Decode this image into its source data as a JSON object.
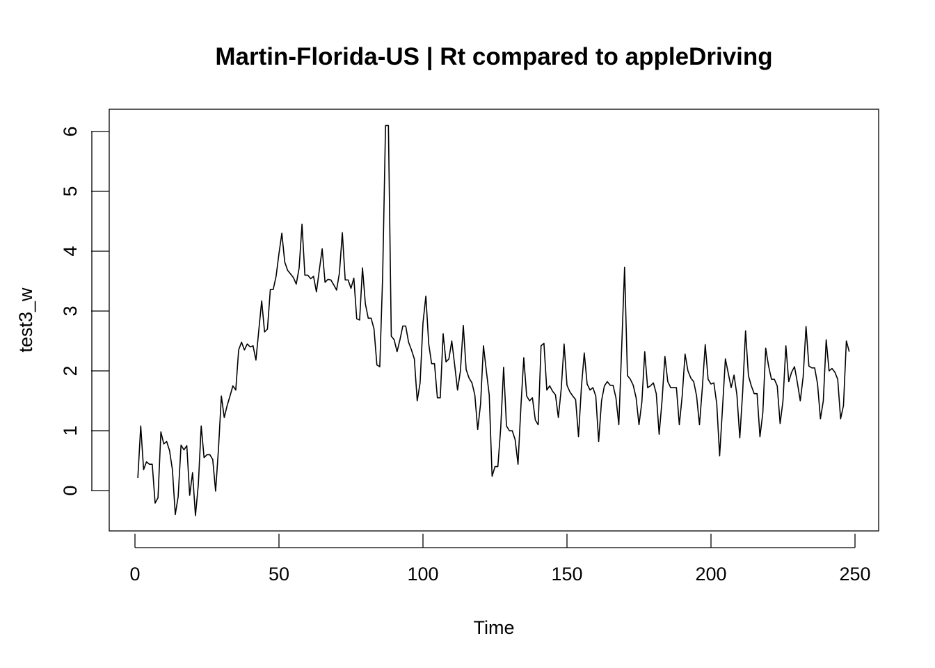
{
  "chart_data": {
    "type": "line",
    "title": "Martin-Florida-US | Rt compared to appleDriving",
    "xlabel": "Time",
    "ylabel": "test3_w",
    "xlim": [
      1,
      248
    ],
    "ylim": [
      -0.42,
      6.1
    ],
    "x_ticks": [
      0,
      50,
      100,
      150,
      200,
      250
    ],
    "x_tick_labels": [
      "0",
      "50",
      "100",
      "150",
      "200",
      "250"
    ],
    "y_ticks": [
      0,
      1,
      2,
      3,
      4,
      5,
      6
    ],
    "y_tick_labels": [
      "0",
      "1",
      "2",
      "3",
      "4",
      "5",
      "6"
    ],
    "grid": false,
    "series": [
      {
        "values": [
          0.21,
          1.08,
          0.35,
          0.48,
          0.44,
          0.44,
          -0.21,
          -0.12,
          0.98,
          0.78,
          0.82,
          0.67,
          0.35,
          -0.4,
          -0.1,
          0.76,
          0.68,
          0.75,
          -0.08,
          0.3,
          -0.42,
          0.1,
          1.08,
          0.55,
          0.6,
          0.6,
          0.52,
          -0.01,
          0.7,
          1.58,
          1.22,
          1.42,
          1.58,
          1.75,
          1.68,
          2.35,
          2.48,
          2.35,
          2.45,
          2.4,
          2.42,
          2.18,
          2.68,
          3.17,
          2.65,
          2.7,
          3.36,
          3.36,
          3.58,
          3.96,
          4.3,
          3.82,
          3.68,
          3.62,
          3.56,
          3.45,
          3.72,
          4.45,
          3.6,
          3.6,
          3.54,
          3.58,
          3.32,
          3.68,
          4.04,
          3.48,
          3.53,
          3.52,
          3.44,
          3.35,
          3.64,
          4.31,
          3.52,
          3.52,
          3.38,
          3.55,
          2.87,
          2.85,
          3.72,
          3.12,
          2.88,
          2.88,
          2.7,
          2.1,
          2.07,
          3.58,
          6.1,
          6.1,
          2.58,
          2.52,
          2.32,
          2.52,
          2.75,
          2.75,
          2.48,
          2.35,
          2.2,
          1.5,
          1.8,
          2.8,
          3.25,
          2.45,
          2.12,
          2.12,
          1.55,
          1.55,
          2.62,
          2.15,
          2.2,
          2.5,
          2.1,
          1.68,
          2.0,
          2.76,
          2.02,
          1.88,
          1.8,
          1.6,
          1.02,
          1.45,
          2.42,
          2.0,
          1.6,
          0.24,
          0.4,
          0.4,
          1.05,
          2.06,
          1.08,
          1.0,
          1.0,
          0.85,
          0.44,
          1.4,
          2.22,
          1.58,
          1.5,
          1.55,
          1.18,
          1.1,
          2.42,
          2.46,
          1.68,
          1.75,
          1.66,
          1.6,
          1.22,
          1.7,
          2.45,
          1.76,
          1.65,
          1.58,
          1.52,
          0.9,
          1.72,
          2.3,
          1.78,
          1.68,
          1.72,
          1.58,
          0.82,
          1.5,
          1.75,
          1.82,
          1.76,
          1.76,
          1.55,
          1.1,
          2.4,
          3.73,
          1.92,
          1.86,
          1.76,
          1.55,
          1.1,
          1.48,
          2.32,
          1.72,
          1.75,
          1.8,
          1.62,
          0.94,
          1.5,
          2.24,
          1.82,
          1.72,
          1.72,
          1.72,
          1.1,
          1.58,
          2.28,
          2.0,
          1.88,
          1.82,
          1.58,
          1.1,
          1.72,
          2.44,
          1.86,
          1.78,
          1.8,
          1.45,
          0.58,
          1.38,
          2.2,
          1.96,
          1.72,
          1.93,
          1.6,
          0.88,
          1.65,
          2.67,
          1.92,
          1.75,
          1.62,
          1.62,
          0.9,
          1.3,
          2.38,
          2.08,
          1.86,
          1.86,
          1.75,
          1.12,
          1.5,
          2.42,
          1.82,
          1.98,
          2.07,
          1.8,
          1.5,
          1.9,
          2.74,
          2.08,
          2.05,
          2.05,
          1.78,
          1.2,
          1.5,
          2.52,
          2.0,
          2.04,
          1.98,
          1.86,
          1.2,
          1.42,
          2.5,
          2.32
        ]
      }
    ]
  }
}
